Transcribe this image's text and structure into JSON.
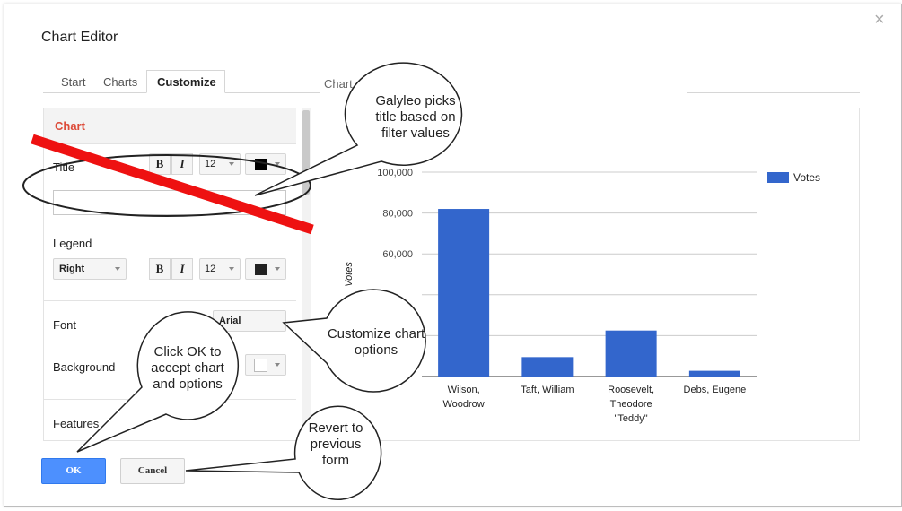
{
  "dialog": {
    "title": "Chart Editor",
    "close_glyph": "×"
  },
  "tabs": [
    {
      "label": "Start"
    },
    {
      "label": "Charts"
    },
    {
      "label": "Customize"
    }
  ],
  "preview_label": "Chart m",
  "panel": {
    "section_heading": "Chart",
    "title_label": "Title",
    "title_value": "",
    "title_font_size": "12",
    "legend_label": "Legend",
    "legend_position": "Right",
    "legend_font_size": "12",
    "bold_glyph": "B",
    "italic_glyph": "I",
    "font_label": "Font",
    "font_value": "Arial",
    "background_label": "Background",
    "features_label": "Features",
    "text_color": "#000000",
    "legend_color": "#222222",
    "background_color": "#ffffff"
  },
  "buttons": {
    "ok": "OK",
    "cancel": "Cancel",
    "ok_color": "#4d90fe"
  },
  "chart_data": {
    "type": "bar",
    "categories": [
      [
        "Wilson,",
        "Woodrow"
      ],
      [
        "Taft, William"
      ],
      [
        "Roosevelt,",
        "Theodore",
        "\"Teddy\""
      ],
      [
        "Debs, Eugene"
      ]
    ],
    "series": [
      {
        "name": "Votes",
        "values": [
          82000,
          9500,
          22500,
          2800
        ],
        "color": "#3366cc"
      }
    ],
    "ylabel": "Votes",
    "ylim": [
      0,
      100000
    ],
    "yticks": [
      "100,000",
      "80,000",
      "60,000",
      "",
      ""
    ],
    "legend_position": "top-right"
  },
  "annotations": {
    "title_callout": [
      "Galyleo picks",
      "title based on",
      "filter values"
    ],
    "customize_callout": [
      "Customize chart",
      "options"
    ],
    "ok_callout": [
      "Click OK to",
      "accept chart",
      "and options"
    ],
    "revert_callout": [
      "Revert to",
      "previous",
      "form"
    ]
  }
}
